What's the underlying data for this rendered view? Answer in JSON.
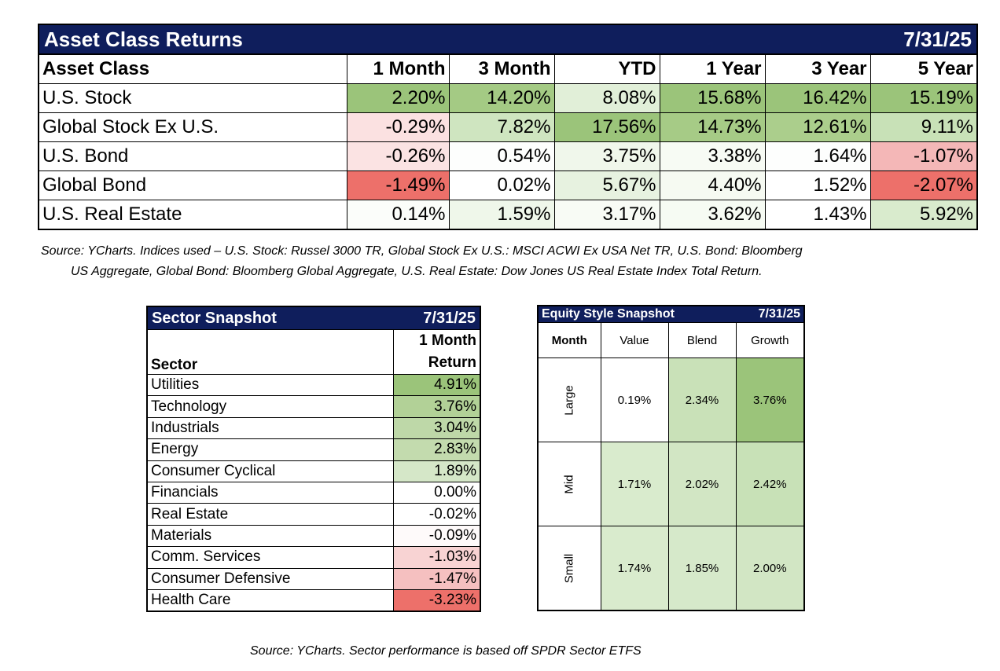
{
  "asset_table": {
    "title": "Asset Class Returns",
    "date": "7/31/25",
    "headers": [
      "Asset Class",
      "1 Month",
      "3 Month",
      "YTD",
      "1 Year",
      "3 Year",
      "5 Year"
    ],
    "rows": [
      {
        "name": "U.S. Stock",
        "values": [
          "2.20%",
          "14.20%",
          "8.08%",
          "15.68%",
          "16.42%",
          "15.19%"
        ],
        "colors": [
          "#9bc47a",
          "#a4ca84",
          "#e1efd8",
          "#9bc47a",
          "#9bc47a",
          "#9bc47a"
        ]
      },
      {
        "name": "Global Stock Ex U.S.",
        "values": [
          "-0.29%",
          "7.82%",
          "17.56%",
          "14.73%",
          "12.61%",
          "9.11%"
        ],
        "colors": [
          "#fbe1e1",
          "#cfe5c0",
          "#9bc47a",
          "#a6cb86",
          "#abce8c",
          "#c8e1b7"
        ]
      },
      {
        "name": "U.S. Bond",
        "values": [
          "-0.26%",
          "0.54%",
          "3.75%",
          "3.38%",
          "1.64%",
          "-1.07%"
        ],
        "colors": [
          "#fbe3e3",
          "#fdfefd",
          "#f0f7eb",
          "#f7fbf4",
          "#fdfefd",
          "#f4b7b7"
        ]
      },
      {
        "name": "Global Bond",
        "values": [
          "-1.49%",
          "0.02%",
          "5.67%",
          "4.40%",
          "1.52%",
          "-2.07%"
        ],
        "colors": [
          "#ed706a",
          "#ffffff",
          "#e7f2e0",
          "#f6faf2",
          "#ffffff",
          "#ed706a"
        ]
      },
      {
        "name": "U.S. Real Estate",
        "values": [
          "0.14%",
          "1.59%",
          "3.17%",
          "3.62%",
          "1.43%",
          "5.92%"
        ],
        "colors": [
          "#fbfdfa",
          "#eff7ea",
          "#f8fbf5",
          "#f6fbf3",
          "#ffffff",
          "#d9ebcd"
        ]
      }
    ]
  },
  "source_1_line1": "Source: YCharts. Indices used – U.S. Stock: Russel 3000 TR, Global Stock Ex U.S.: MSCI ACWI Ex USA Net TR, U.S. Bond: Bloomberg",
  "source_1_line2": "US Aggregate, Global Bond: Bloomberg Global Aggregate, U.S. Real Estate: Dow Jones US Real Estate Index Total Return.",
  "sector_table": {
    "title": "Sector Snapshot",
    "date": "7/31/25",
    "col_header": "Sector",
    "val_header_line1": "1 Month",
    "val_header_line2": "Return",
    "rows": [
      {
        "name": "Utilities",
        "value": "4.91%",
        "color": "#9bc47a"
      },
      {
        "name": "Technology",
        "value": "3.76%",
        "color": "#b2d197"
      },
      {
        "name": "Industrials",
        "value": "3.04%",
        "color": "#bed8a8"
      },
      {
        "name": "Energy",
        "value": "2.83%",
        "color": "#c3dbae"
      },
      {
        "name": "Consumer Cyclical",
        "value": "1.89%",
        "color": "#d5e7c8"
      },
      {
        "name": "Financials",
        "value": "0.00%",
        "color": "#ffffff"
      },
      {
        "name": "Real Estate",
        "value": "-0.02%",
        "color": "#ffffff"
      },
      {
        "name": "Materials",
        "value": "-0.09%",
        "color": "#fefafa"
      },
      {
        "name": "Comm. Services",
        "value": "-1.03%",
        "color": "#f8d3d3"
      },
      {
        "name": "Consumer Defensive",
        "value": "-1.47%",
        "color": "#f5c0c0"
      },
      {
        "name": "Health Care",
        "value": "-3.23%",
        "color": "#ed706a"
      }
    ]
  },
  "style_table": {
    "title": "Equity Style Snapshot",
    "date": "7/31/25",
    "month_header": "Month",
    "col_headers": [
      "Value",
      "Blend",
      "Growth"
    ],
    "rows": [
      {
        "label": "Large",
        "values": [
          "0.19%",
          "2.34%",
          "3.76%"
        ],
        "colors": [
          "#ffffff",
          "#c9e1b8",
          "#9bc47a"
        ]
      },
      {
        "label": "Mid",
        "values": [
          "1.71%",
          "2.02%",
          "2.42%"
        ],
        "colors": [
          "#d9ebcd",
          "#d2e6c4",
          "#c8e1b7"
        ]
      },
      {
        "label": "Small",
        "values": [
          "1.74%",
          "1.85%",
          "2.00%"
        ],
        "colors": [
          "#d9ebcd",
          "#d6e9ca",
          "#d2e6c4"
        ]
      }
    ]
  },
  "source_2": "Source: YCharts. Sector performance is based off SPDR Sector ETFS"
}
